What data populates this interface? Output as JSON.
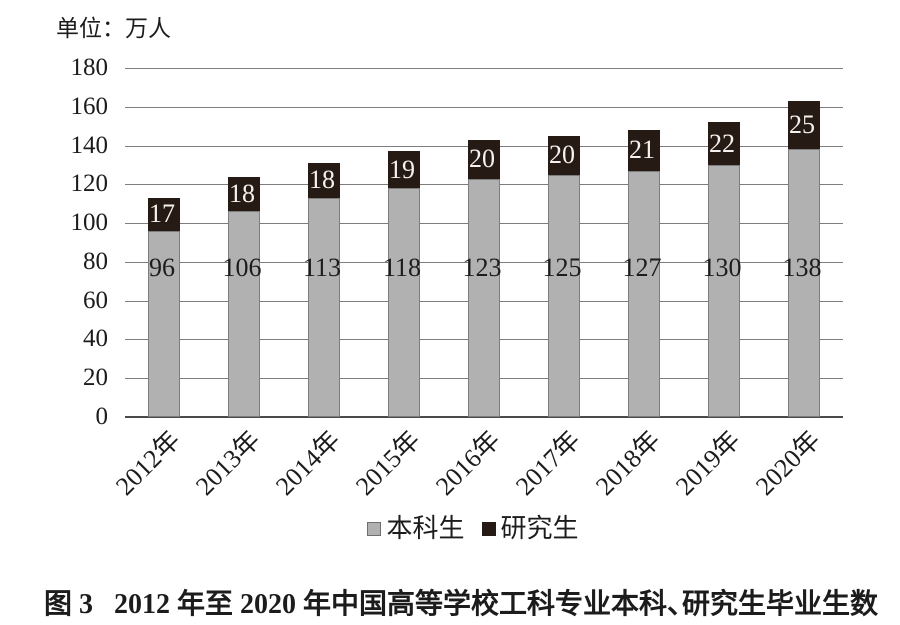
{
  "chart_data": {
    "type": "stacked_bar",
    "unit_label": "单位：万人",
    "categories": [
      "2012年",
      "2013年",
      "2014年",
      "2015年",
      "2016年",
      "2017年",
      "2018年",
      "2019年",
      "2020年"
    ],
    "series": [
      {
        "name": "本科生",
        "color": "#b1b1b1",
        "values": [
          96,
          106,
          113,
          118,
          123,
          125,
          127,
          130,
          138
        ]
      },
      {
        "name": "研究生",
        "color": "#261a14",
        "values": [
          17,
          18,
          18,
          19,
          20,
          20,
          21,
          22,
          25
        ]
      }
    ],
    "ylim": [
      0,
      180
    ],
    "ytick_step": 20,
    "grid": "horizontal",
    "legend_position": "bottom"
  },
  "legend": {
    "items": [
      {
        "label": "本科生"
      },
      {
        "label": "研究生"
      }
    ]
  },
  "caption": "图 3   2012 年至 2020 年中国高等学校工科专业本科、研究生毕业生数"
}
